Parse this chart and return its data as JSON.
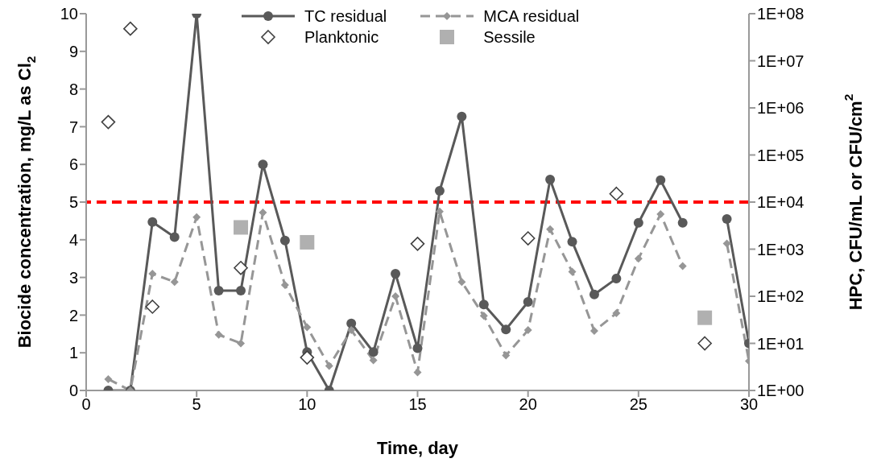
{
  "chart_data": {
    "type": "line",
    "xlabel": "Time, day",
    "ylabel": "Biocide concentration, mg/L as Cl$_{2}$",
    "y2label": "HPC, CFU/mL or CFU/cm$^{2}$",
    "x": [
      1,
      2,
      3,
      4,
      5,
      6,
      7,
      8,
      9,
      10,
      11,
      12,
      13,
      14,
      15,
      16,
      17,
      18,
      19,
      20,
      21,
      22,
      23,
      24,
      25,
      26,
      27,
      28,
      29,
      30
    ],
    "series": [
      {
        "name": "TC residual",
        "color": "#595959",
        "marker": "circle",
        "line_style": "solid",
        "values": [
          0,
          0,
          4.47,
          4.07,
          10,
          2.65,
          2.65,
          6.0,
          3.98,
          1.02,
          0,
          1.78,
          1.02,
          3.1,
          1.12,
          5.3,
          7.27,
          2.28,
          1.62,
          2.35,
          5.6,
          3.95,
          2.55,
          2.97,
          4.45,
          5.58,
          4.45,
          null,
          4.55,
          1.25
        ]
      },
      {
        "name": "MCA residual",
        "color": "#969696",
        "marker": "diamond",
        "line_style": "dashed",
        "values": [
          0.3,
          0,
          3.1,
          2.88,
          4.6,
          1.48,
          1.25,
          4.72,
          2.8,
          1.68,
          0.65,
          1.6,
          0.8,
          2.5,
          0.48,
          4.75,
          2.88,
          1.98,
          0.93,
          1.6,
          4.28,
          3.15,
          1.58,
          2.05,
          3.5,
          4.68,
          3.3,
          null,
          3.9,
          0.78
        ]
      },
      {
        "name": "Planktonic",
        "type": "scatter",
        "axis": "y2",
        "color": "#404040",
        "marker": "diamond",
        "x": [
          1,
          2,
          3,
          7,
          10,
          15,
          20,
          24,
          28
        ],
        "values": [
          500000,
          48000000,
          60,
          400,
          5,
          1300,
          1700,
          15000,
          10
        ]
      },
      {
        "name": "Sessile",
        "type": "scatter",
        "axis": "y2",
        "color": "#b0b0b0",
        "marker": "square",
        "x": [
          7,
          10,
          28
        ],
        "values": [
          2900,
          1400,
          35
        ]
      }
    ],
    "xlim": [
      0,
      30
    ],
    "xticks": [
      0,
      5,
      10,
      15,
      20,
      25,
      30
    ],
    "ylim": [
      0,
      10
    ],
    "yticks": [
      0,
      1,
      2,
      3,
      4,
      5,
      6,
      7,
      8,
      9,
      10
    ],
    "y2lim": [
      1,
      100000000
    ],
    "y2ticks": [
      {
        "value": 1,
        "label": "1E+00"
      },
      {
        "value": 10,
        "label": "1E+01"
      },
      {
        "value": 100,
        "label": "1E+02"
      },
      {
        "value": 1000,
        "label": "1E+03"
      },
      {
        "value": 10000,
        "label": "1E+04"
      },
      {
        "value": 100000,
        "label": "1E+05"
      },
      {
        "value": 1000000,
        "label": "1E+06"
      },
      {
        "value": 10000000,
        "label": "1E+07"
      },
      {
        "value": 100000000,
        "label": "1E+08"
      }
    ],
    "log": "y2",
    "ref_lines": [
      {
        "axis": "y2",
        "value": 10000,
        "color": "#ff0000",
        "line_style": "dashed"
      }
    ],
    "legend": "top"
  }
}
